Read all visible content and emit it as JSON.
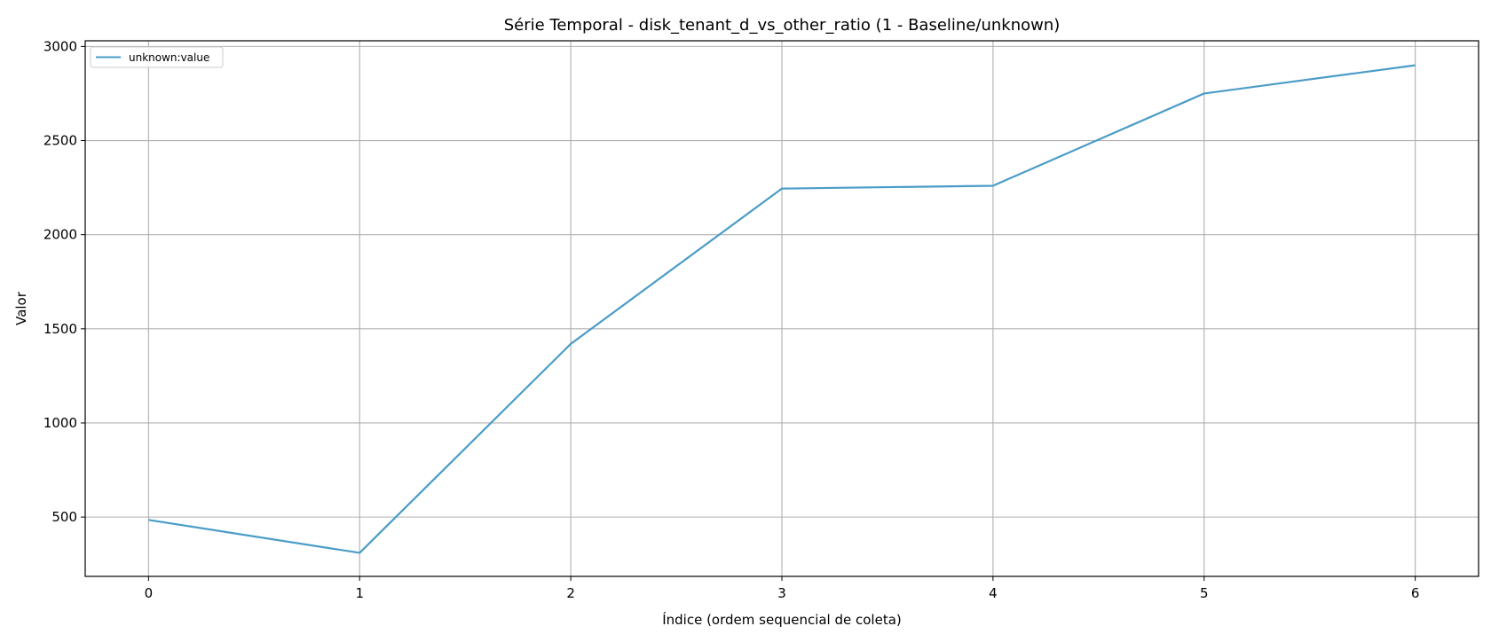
{
  "chart_data": {
    "type": "line",
    "title": "Série Temporal - disk_tenant_d_vs_other_ratio (1 - Baseline/unknown)",
    "xlabel": "Índice (ordem sequencial de coleta)",
    "ylabel": "Valor",
    "x": [
      0,
      1,
      2,
      3,
      4,
      5,
      6
    ],
    "xlim": [
      -0.3,
      6.3
    ],
    "ylim": [
      185,
      3030
    ],
    "xticks": [
      0,
      1,
      2,
      3,
      4,
      5,
      6
    ],
    "yticks": [
      500,
      1000,
      1500,
      2000,
      2500,
      3000
    ],
    "grid": true,
    "legend_position": "top-left",
    "series": [
      {
        "name": "unknown:value",
        "color": "#4a9cc8",
        "values": [
          485,
          310,
          1420,
          2245,
          2260,
          2750,
          2900
        ]
      }
    ]
  }
}
